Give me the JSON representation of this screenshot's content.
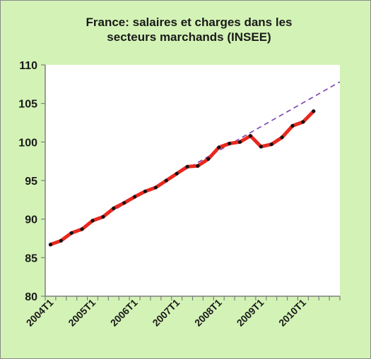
{
  "chart_data": {
    "type": "line",
    "title_lines": [
      "France: salaires et charges dans les",
      "secteurs marchands (INSEE)"
    ],
    "xlabel": "",
    "ylabel": "",
    "ylim": [
      80,
      110
    ],
    "y_ticks": [
      80,
      85,
      90,
      95,
      100,
      105,
      110
    ],
    "x_tick_labels": [
      "2004T1",
      "2005T1",
      "2006T1",
      "2007T1",
      "2008T1",
      "2009T1",
      "2010T1"
    ],
    "x_period_count": 28,
    "grid": false,
    "legend": "none",
    "colors": {
      "background": "#d3f3b6",
      "plot_background": "#ffffff",
      "series_line": "#e8281e",
      "markers": "#111111",
      "trend_line": "#7a3fb0",
      "axis": "#7f7f7f"
    },
    "series": [
      {
        "values": [
          86.7,
          87.2,
          88.2,
          88.7,
          89.8,
          90.3,
          91.4,
          92.1,
          92.9,
          93.6,
          94.1,
          95.0,
          95.9,
          96.8,
          96.9,
          97.8,
          99.3,
          99.8,
          100.0,
          100.8,
          99.4,
          99.7,
          100.6,
          102.1,
          102.6,
          104.0
        ]
      }
    ],
    "trend": {
      "x_start": 0,
      "y_start": 86.5,
      "x_end": 27.5,
      "y_end": 107.8,
      "style": "dashed"
    }
  }
}
